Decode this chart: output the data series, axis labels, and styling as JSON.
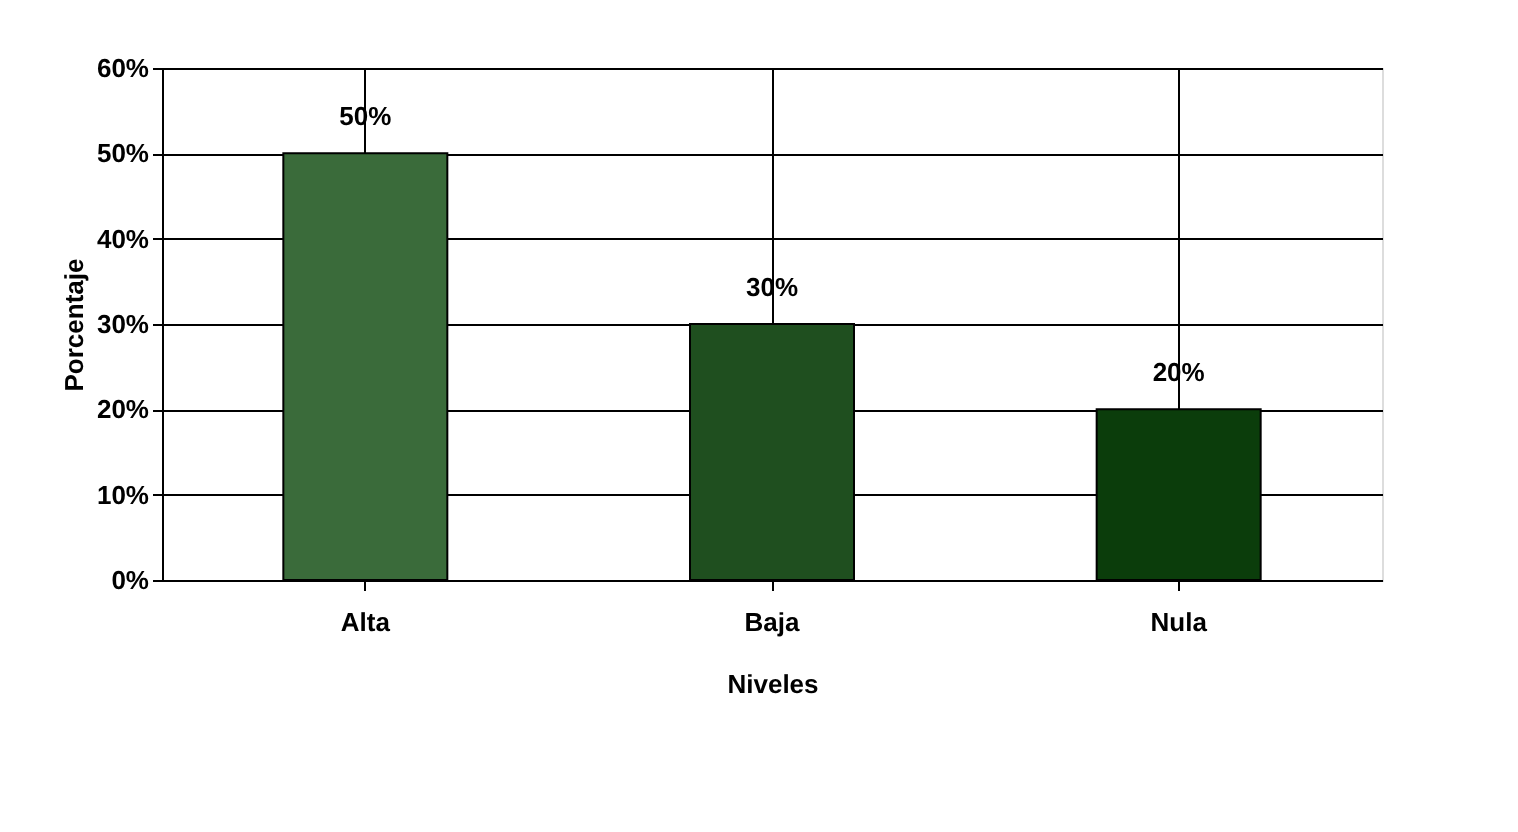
{
  "chart_data": {
    "type": "bar",
    "xlabel": "Niveles",
    "ylabel": "Porcentaje",
    "categories": [
      "Alta",
      "Baja",
      "Nula"
    ],
    "values": [
      50,
      30,
      20
    ],
    "colors": [
      "#3a6b3a",
      "#1f4f1f",
      "#0b3d0b"
    ],
    "value_labels": [
      "50%",
      "30%",
      "20%"
    ],
    "ylim": [
      0,
      60
    ],
    "yticks": [
      {
        "value": 0,
        "label": "0%"
      },
      {
        "value": 10,
        "label": "10%"
      },
      {
        "value": 20,
        "label": "20%"
      },
      {
        "value": 30,
        "label": "30%"
      },
      {
        "value": 40,
        "label": "40%"
      },
      {
        "value": 50,
        "label": "50%"
      },
      {
        "value": 60,
        "label": "60%"
      }
    ],
    "grid": true
  }
}
